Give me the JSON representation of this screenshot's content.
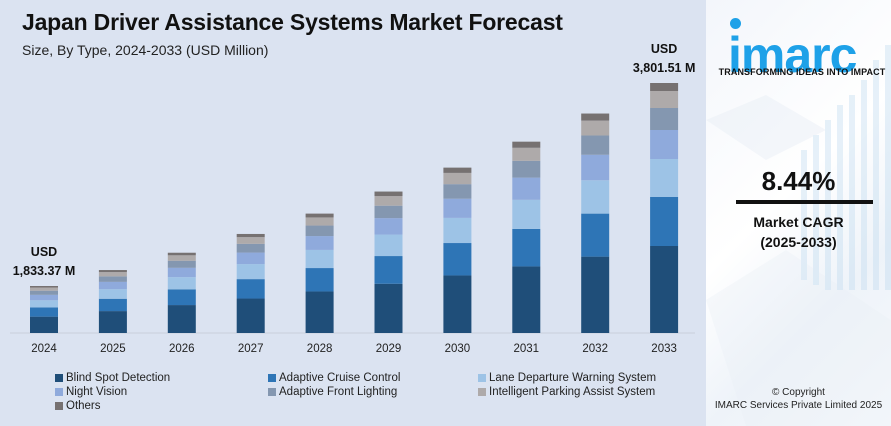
{
  "header": {
    "title": "Japan Driver Assistance Systems Market Forecast",
    "subtitle": "Size, By Type, 2024-2033 (USD Million)"
  },
  "brand": {
    "logo": "imarc",
    "tagline": "TRANSFORMING IDEAS INTO IMPACT",
    "color": "#1ea1e8"
  },
  "cagr": {
    "value": "8.44%",
    "label_line1": "Market CAGR",
    "label_line2": "(2025-2033)"
  },
  "copyright": {
    "line1": "© Copyright",
    "line2": "IMARC Services Private Limited 2025"
  },
  "chart_data": {
    "type": "bar",
    "stacked": true,
    "title": "Japan Driver Assistance Systems Market Forecast",
    "subtitle": "Size, By Type, 2024-2033 (USD Million)",
    "xlabel": "",
    "ylabel": "",
    "grid": false,
    "legend_position": "bottom",
    "categories": [
      "2024",
      "2025",
      "2026",
      "2027",
      "2028",
      "2029",
      "2030",
      "2031",
      "2032",
      "2033"
    ],
    "totals": [
      1833.37,
      1988.1,
      2155.9,
      2337.9,
      2535.2,
      2749.1,
      2981.1,
      3232.7,
      3505.5,
      3801.51
    ],
    "annotations": [
      {
        "category": "2024",
        "line1": "USD",
        "line2": "1,833.37 M"
      },
      {
        "category": "2033",
        "line1": "USD",
        "line2": "3,801.51 M"
      }
    ],
    "series": [
      {
        "name": "Blind Spot Detection",
        "color": "#1f4e79",
        "share": 0.348
      },
      {
        "name": "Adaptive Cruise Control",
        "color": "#2e75b6",
        "share": 0.196
      },
      {
        "name": "Lane Departure Warning System",
        "color": "#9dc3e6",
        "share": 0.152
      },
      {
        "name": "Night Vision",
        "color": "#8faadc",
        "share": 0.116
      },
      {
        "name": "Adaptive Front Lighting",
        "color": "#8497b0",
        "share": 0.088
      },
      {
        "name": "Intelligent Parking Assist System",
        "color": "#aeaaaa",
        "share": 0.068
      },
      {
        "name": "Others",
        "color": "#767171",
        "share": 0.032
      }
    ]
  }
}
